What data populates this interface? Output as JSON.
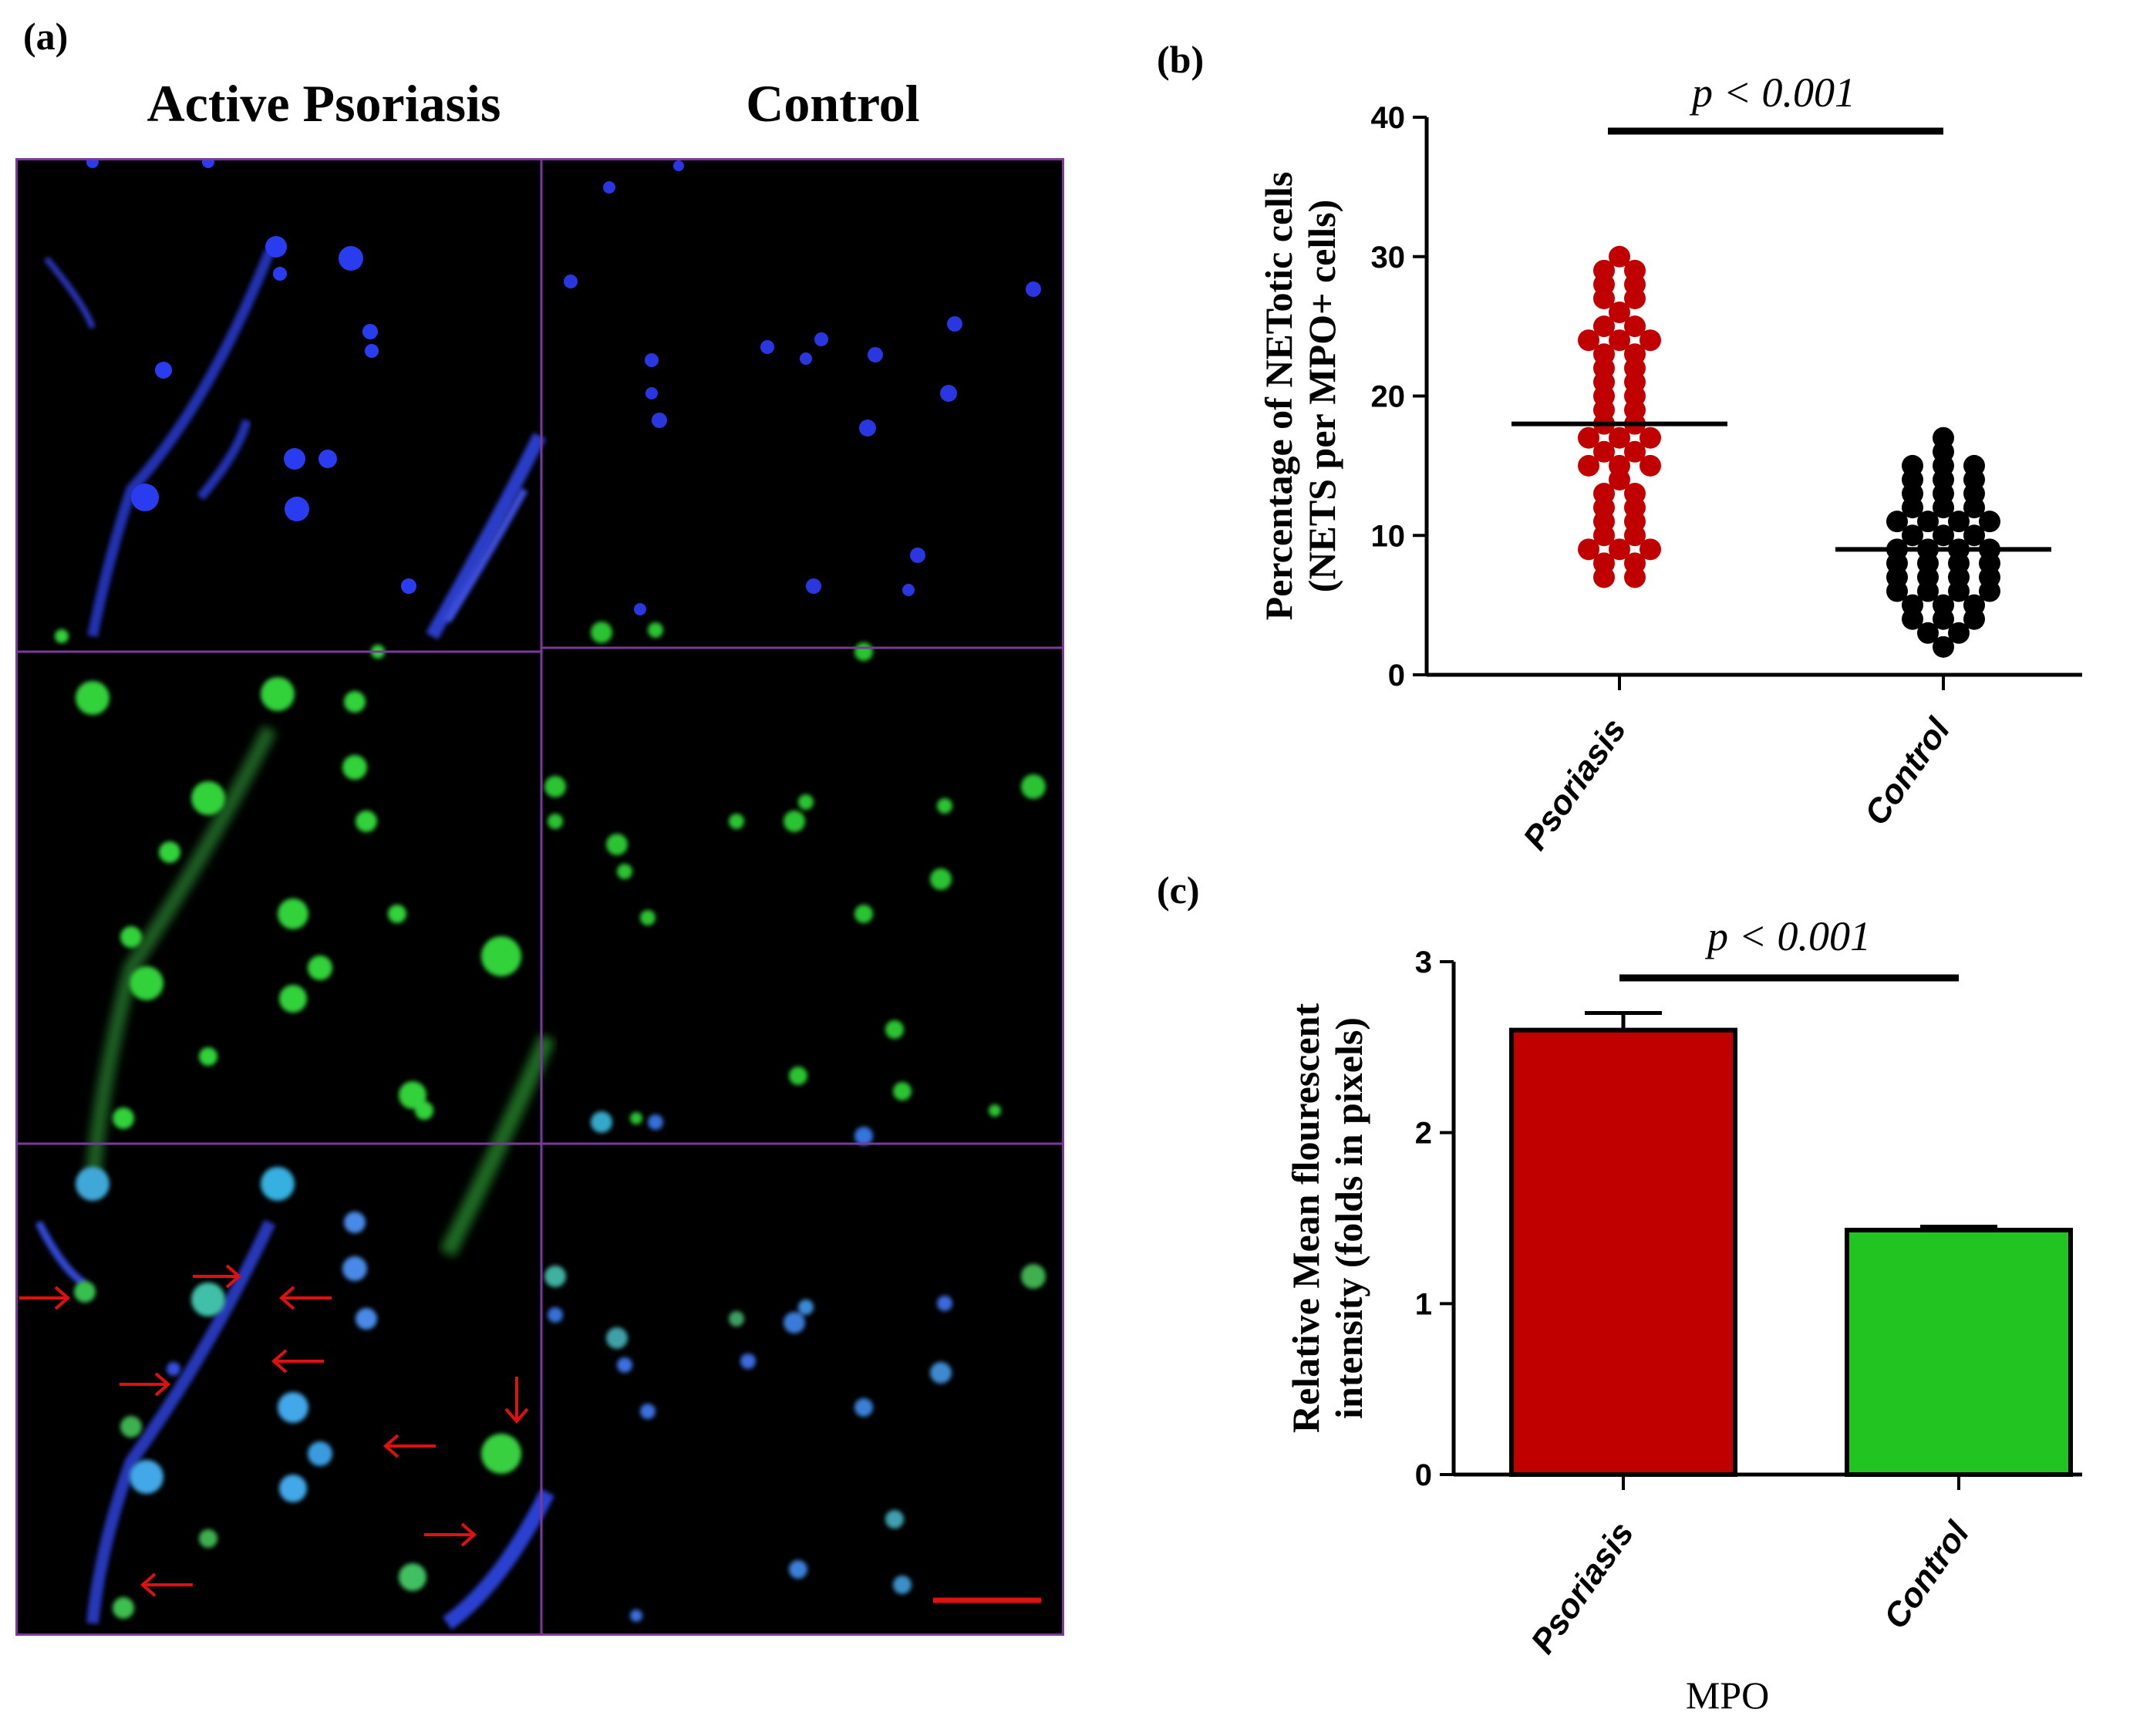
{
  "panel_a": {
    "label": "(a)",
    "col_titles": [
      "Active Psoriasis",
      "Control"
    ]
  },
  "panel_b": {
    "label": "(b)"
  },
  "panel_c": {
    "label": "(c)"
  },
  "chart_data": [
    {
      "type": "scatter",
      "panel": "(b)",
      "ylabel_lines": [
        "Percentage of NETotic cells",
        "(NETS per MPO+ cells)"
      ],
      "categories": [
        "Psoriasis",
        "Control"
      ],
      "ylim": [
        0,
        40
      ],
      "yticks": [
        0,
        10,
        20,
        30,
        40
      ],
      "annotation": "p < 0.001",
      "colors": {
        "Psoriasis": "#c00000",
        "Control": "#000000"
      },
      "means": [
        18,
        9
      ],
      "series": [
        {
          "category": "Psoriasis",
          "values": [
            7,
            7,
            8,
            8,
            9,
            9,
            9,
            10,
            10,
            11,
            11,
            12,
            12,
            13,
            13,
            14,
            15,
            15,
            15,
            16,
            16,
            17,
            17,
            17,
            18,
            18,
            19,
            19,
            20,
            20,
            21,
            21,
            22,
            22,
            23,
            23,
            24,
            24,
            24,
            25,
            25,
            26,
            27,
            27,
            28,
            28,
            29,
            29,
            30
          ]
        },
        {
          "category": "Control",
          "values": [
            2,
            3,
            3,
            4,
            4,
            4,
            5,
            5,
            5,
            6,
            6,
            6,
            6,
            7,
            7,
            7,
            7,
            8,
            8,
            8,
            8,
            9,
            9,
            9,
            9,
            10,
            10,
            10,
            11,
            11,
            11,
            11,
            12,
            12,
            12,
            13,
            13,
            13,
            14,
            14,
            14,
            15,
            15,
            15,
            16,
            17
          ]
        }
      ]
    },
    {
      "type": "bar",
      "panel": "(c)",
      "ylabel_lines": [
        "Relative Mean flourescent",
        "intensity (folds in pixels)"
      ],
      "xlabel": "MPO",
      "categories": [
        "Psoriasis",
        "Control"
      ],
      "values": [
        2.6,
        1.43
      ],
      "errors": [
        0.1,
        0.02
      ],
      "colors": [
        "#c00000",
        "#22c422"
      ],
      "ylim": [
        0,
        3
      ],
      "yticks": [
        0,
        1,
        2,
        3
      ],
      "annotation": "p < 0.001"
    }
  ]
}
